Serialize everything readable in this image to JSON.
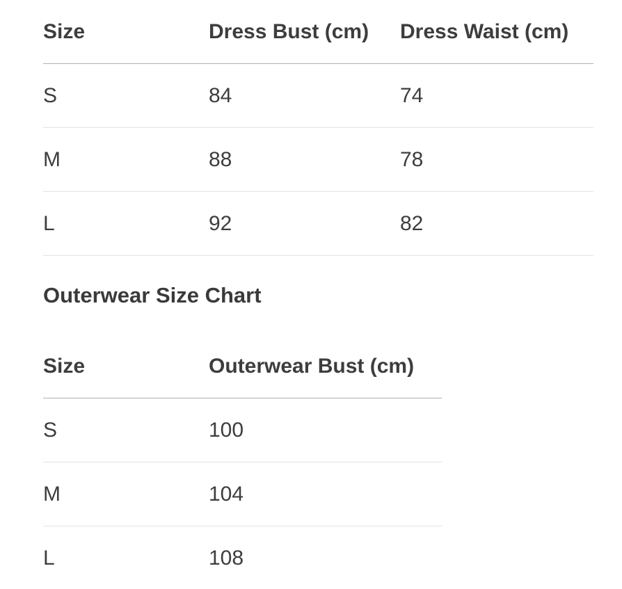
{
  "theme": {
    "background": "#ffffff",
    "text_color": "#3d3d3d",
    "header_divider_color": "#b0b0b0",
    "row_divider_color": "#e2e2e2"
  },
  "dress_table": {
    "columns": [
      "Size",
      "Dress Bust (cm)",
      "Dress Waist (cm)"
    ],
    "rows": [
      [
        "S",
        "84",
        "74"
      ],
      [
        "M",
        "88",
        "78"
      ],
      [
        "L",
        "92",
        "82"
      ]
    ]
  },
  "outerwear_section": {
    "heading": "Outerwear Size Chart",
    "table": {
      "columns": [
        "Size",
        "Outerwear Bust (cm)"
      ],
      "rows": [
        [
          "S",
          "100"
        ],
        [
          "M",
          "104"
        ],
        [
          "L",
          "108"
        ]
      ]
    }
  }
}
